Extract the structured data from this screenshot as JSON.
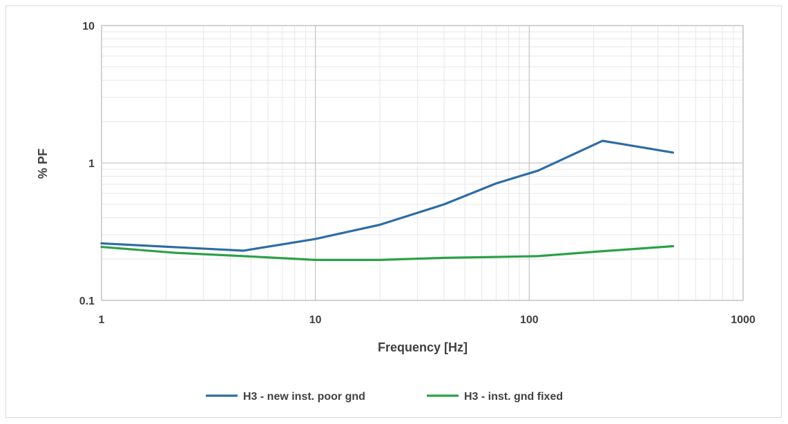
{
  "chart_data": {
    "type": "line",
    "title": "",
    "xlabel": "Frequency [Hz]",
    "ylabel": "% PF",
    "x_scale": "log",
    "y_scale": "log",
    "xlim": [
      1,
      1000
    ],
    "ylim": [
      0.1,
      10
    ],
    "x_ticks": [
      1,
      10,
      100,
      1000
    ],
    "x_tick_labels": [
      "1",
      "10",
      "100",
      "1000"
    ],
    "y_ticks": [
      0.1,
      1,
      10
    ],
    "y_tick_labels": [
      "0.1",
      "1",
      "10"
    ],
    "grid": true,
    "legend_position": "bottom",
    "series": [
      {
        "name": "H3 - new inst. poor gnd",
        "color": "#2e6ca4",
        "x": [
          1,
          4.6,
          10,
          20,
          40,
          70,
          110,
          220,
          470
        ],
        "y": [
          0.26,
          0.23,
          0.28,
          0.355,
          0.5,
          0.71,
          0.88,
          1.45,
          1.19
        ]
      },
      {
        "name": "H3 - inst. gnd fixed",
        "color": "#2ca048",
        "x": [
          1,
          2.2,
          4.6,
          10,
          20,
          40,
          70,
          110,
          220,
          470
        ],
        "y": [
          0.245,
          0.222,
          0.21,
          0.197,
          0.197,
          0.204,
          0.207,
          0.21,
          0.228,
          0.248
        ]
      }
    ]
  }
}
